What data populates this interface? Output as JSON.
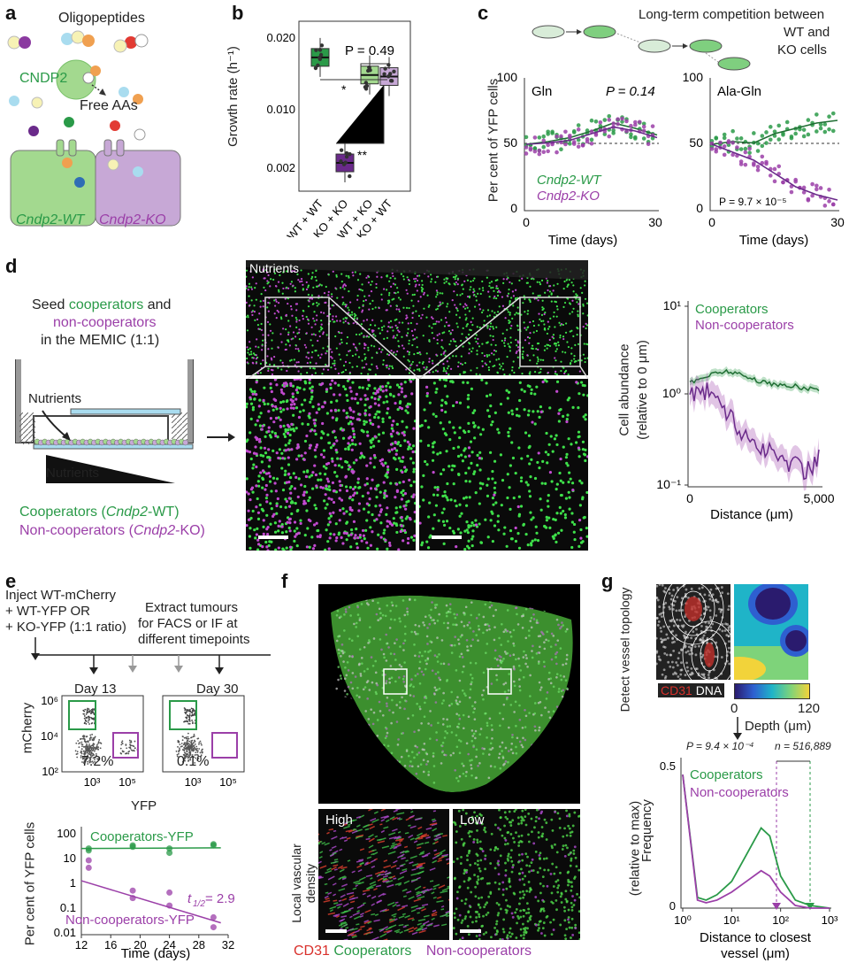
{
  "colors": {
    "green": "#2a9a48",
    "purple": "#9b3fa8",
    "dark_purple": "#6a2a8a",
    "cndp2_green": "#a3d98f",
    "cndp2_violet": "#c7a8d6",
    "red": "#d9302b"
  },
  "a": {
    "label": "a",
    "oligopeptides": "Oligopeptides",
    "cndp2": "CNDP2",
    "free_aas": "Free AAs",
    "wt_cell": "Cndp2-WT",
    "ko_cell": "Cndp2-KO"
  },
  "b": {
    "label": "b",
    "ylabel": "Growth rate (h⁻¹)",
    "pvalue": "P = 0.49",
    "sig1": "*",
    "sig2": "**",
    "chart_data": {
      "type": "box",
      "categories": [
        "WT + WT",
        "KO + KO",
        "WT + KO",
        "KO + WT"
      ],
      "medians": [
        0.0175,
        0.0037,
        0.0152,
        0.015
      ],
      "yticks": [
        "0.020",
        "0.010",
        "0.002"
      ],
      "annotations": [
        "*",
        "**",
        "P = 0.49"
      ]
    }
  },
  "c": {
    "label": "c",
    "title_line1": "Long-term competition between",
    "title_line2": "WT and",
    "title_line3": "KO cells",
    "ylabel": "Per cent of YFP cells",
    "xlabel_left": "Time (days)",
    "xlabel_right": "Time (days)",
    "yticks": [
      "100",
      "50",
      "0"
    ],
    "xticks": [
      "0",
      "30"
    ],
    "left_title": "Gln",
    "left_p": "P = 0.14",
    "right_title": "Ala-Gln",
    "right_p": "P = 9.7 × 10⁻⁵",
    "legend_wt": "Cndp2-WT",
    "legend_ko": "Cndp2-KO",
    "chart_data": [
      {
        "type": "line",
        "title": "Gln",
        "x": [
          0,
          5,
          10,
          15,
          20,
          25,
          30
        ],
        "series": [
          {
            "name": "Cndp2-WT",
            "values": [
              50,
              52,
              55,
              60,
              66,
              62,
              57
            ]
          },
          {
            "name": "Cndp2-KO",
            "values": [
              50,
              51,
              53,
              58,
              63,
              60,
              55
            ]
          }
        ],
        "ylim": [
          0,
          100
        ],
        "xlim": [
          0,
          30
        ]
      },
      {
        "type": "line",
        "title": "Ala-Gln",
        "x": [
          0,
          5,
          10,
          15,
          20,
          25,
          30
        ],
        "series": [
          {
            "name": "Cndp2-WT",
            "values": [
              50,
              52,
              51,
              58,
              62,
              66,
              68
            ]
          },
          {
            "name": "Cndp2-KO",
            "values": [
              50,
              44,
              38,
              28,
              18,
              12,
              8
            ]
          }
        ],
        "ylim": [
          0,
          100
        ],
        "xlim": [
          0,
          30
        ]
      }
    ]
  },
  "d": {
    "label": "d",
    "seed_line1": "Seed ",
    "seed_coop": "cooperators",
    "seed_and": " and",
    "seed_noncoop": "non-cooperators",
    "seed_line3": "in the MEMIC (1:1)",
    "nutrients_arrow": "Nutrients",
    "nutrients_wedge": "Nutrients",
    "nutrients_image": "Nutrients",
    "coop_legend": "Cooperators (",
    "coop_legend_it": "Cndp2",
    "coop_legend_end": "-WT)",
    "noncoop_legend": "Non-cooperators (",
    "noncoop_legend_it": "Cndp2",
    "noncoop_legend_end": "-KO)",
    "chart_ylabel1": "Cell abundance",
    "chart_ylabel2": "(relative to 0 μm)",
    "chart_xlabel": "Distance (μm)",
    "legend_coop": "Cooperators",
    "legend_noncoop": "Non-cooperators",
    "yticks": [
      "10¹",
      "10⁰",
      "10⁻¹"
    ],
    "xticks": [
      "0",
      "5,000"
    ],
    "chart_data": {
      "type": "line",
      "ylog": true,
      "ylim": [
        0.1,
        10
      ],
      "xlim": [
        0,
        5000
      ],
      "x": [
        0,
        500,
        1000,
        1500,
        2000,
        2500,
        3000,
        3500,
        4000,
        4500,
        5000
      ],
      "series": [
        {
          "name": "Cooperators",
          "values": [
            1.4,
            1.6,
            1.8,
            1.9,
            1.7,
            1.5,
            1.4,
            1.3,
            1.3,
            1.2,
            1.2
          ]
        },
        {
          "name": "Non-cooperators",
          "values": [
            1.0,
            1.2,
            1.0,
            0.6,
            0.4,
            0.3,
            0.25,
            0.2,
            0.18,
            0.15,
            0.2
          ]
        }
      ]
    }
  },
  "e": {
    "label": "e",
    "inject1": "Inject WT-mCherry",
    "inject2": "+ WT-YFP OR",
    "inject3": "+ KO-YFP (1:1 ratio)",
    "extract1": "Extract tumours",
    "extract2": "for FACS or IF at",
    "extract3": "different timepoints",
    "day13": "Day 13",
    "day30": "Day 30",
    "pct1": "7.2%",
    "pct2": "0.1%",
    "facs_ylabel": "mCherry",
    "facs_xlabel": "YFP",
    "facs_yticks": [
      "10⁶",
      "10⁴",
      "10²"
    ],
    "facs_xticks": [
      "10³",
      "10⁵"
    ],
    "ylabel": "Per cent of YFP cells",
    "xlabel": "Time (days)",
    "legend_coop": "Cooperators-YFP",
    "legend_noncoop": "Non-cooperators-YFP",
    "half_life": "t",
    "half_sub": "1/2",
    "half_val": " = 2.9",
    "yticks": [
      "100",
      "10",
      "1",
      "0.1",
      "0.01"
    ],
    "xticks": [
      "12",
      "16",
      "20",
      "24",
      "28",
      "32"
    ],
    "chart_data": {
      "type": "scatter",
      "ylog": true,
      "xlim": [
        12,
        32
      ],
      "ylim": [
        0.01,
        100
      ],
      "series": [
        {
          "name": "Cooperators-YFP",
          "x": [
            13,
            13,
            19,
            19,
            24,
            24,
            30,
            30
          ],
          "values": [
            30,
            25,
            40,
            35,
            20,
            30,
            45,
            40
          ]
        },
        {
          "name": "Non-cooperators-YFP",
          "x": [
            13,
            13,
            19,
            19,
            24,
            24,
            30,
            30
          ],
          "values": [
            10,
            5,
            0.3,
            0.6,
            0.5,
            0.15,
            0.02,
            0.05
          ]
        }
      ]
    }
  },
  "f": {
    "label": "f",
    "high": "High",
    "low": "Low",
    "side_label": "Local vascular density",
    "cd31": "CD31",
    "cooperators": "Cooperators",
    "noncooperators": "Non-cooperators"
  },
  "g": {
    "label": "g",
    "detect": "Detect vessel topology",
    "cd31": "CD31",
    "dna": "DNA",
    "cb_ticks": [
      "0",
      "120"
    ],
    "depth": "Depth (μm)",
    "p": "P = 9.4 × 10⁻⁴",
    "n": "n = 516,889",
    "legend_coop": "Cooperators",
    "legend_noncoop": "Non-cooperators",
    "ylabel1": "Frequency",
    "ylabel2": "(relative to max)",
    "xlabel1": "Distance to closest",
    "xlabel2": "vessel (μm)",
    "yticks": [
      "0.5",
      "0"
    ],
    "xticks": [
      "10⁰",
      "10¹",
      "10²",
      "10³"
    ],
    "chart_data": {
      "type": "line",
      "xlog": true,
      "xlim": [
        1,
        1000
      ],
      "ylim": [
        0,
        0.55
      ],
      "x": [
        1,
        2,
        3,
        5,
        10,
        20,
        40,
        60,
        100,
        200,
        400,
        1000
      ],
      "series": [
        {
          "name": "Cooperators",
          "values": [
            0.5,
            0.04,
            0.03,
            0.05,
            0.1,
            0.2,
            0.3,
            0.27,
            0.12,
            0.03,
            0.01,
            0.0
          ]
        },
        {
          "name": "Non-cooperators",
          "values": [
            0.5,
            0.03,
            0.02,
            0.03,
            0.06,
            0.1,
            0.14,
            0.12,
            0.06,
            0.01,
            0.0,
            0.0
          ]
        }
      ]
    }
  }
}
